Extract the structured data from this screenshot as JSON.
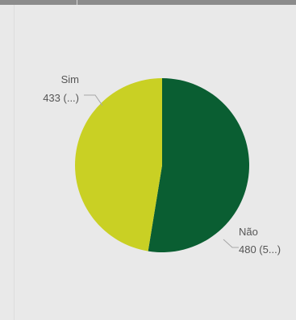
{
  "chart_data": {
    "type": "pie",
    "slices": [
      {
        "label": "Não",
        "value": 480,
        "data_label": "480 (5...)",
        "color": "#0a5e32"
      },
      {
        "label": "Sim",
        "value": 433,
        "data_label": "433 (...)",
        "color": "#c9d024"
      }
    ]
  },
  "colors": {
    "background": "#e9e9e9",
    "top_strip": "#8c8c8c",
    "leader_line": "#a6a6a6",
    "label_text": "#555555"
  }
}
